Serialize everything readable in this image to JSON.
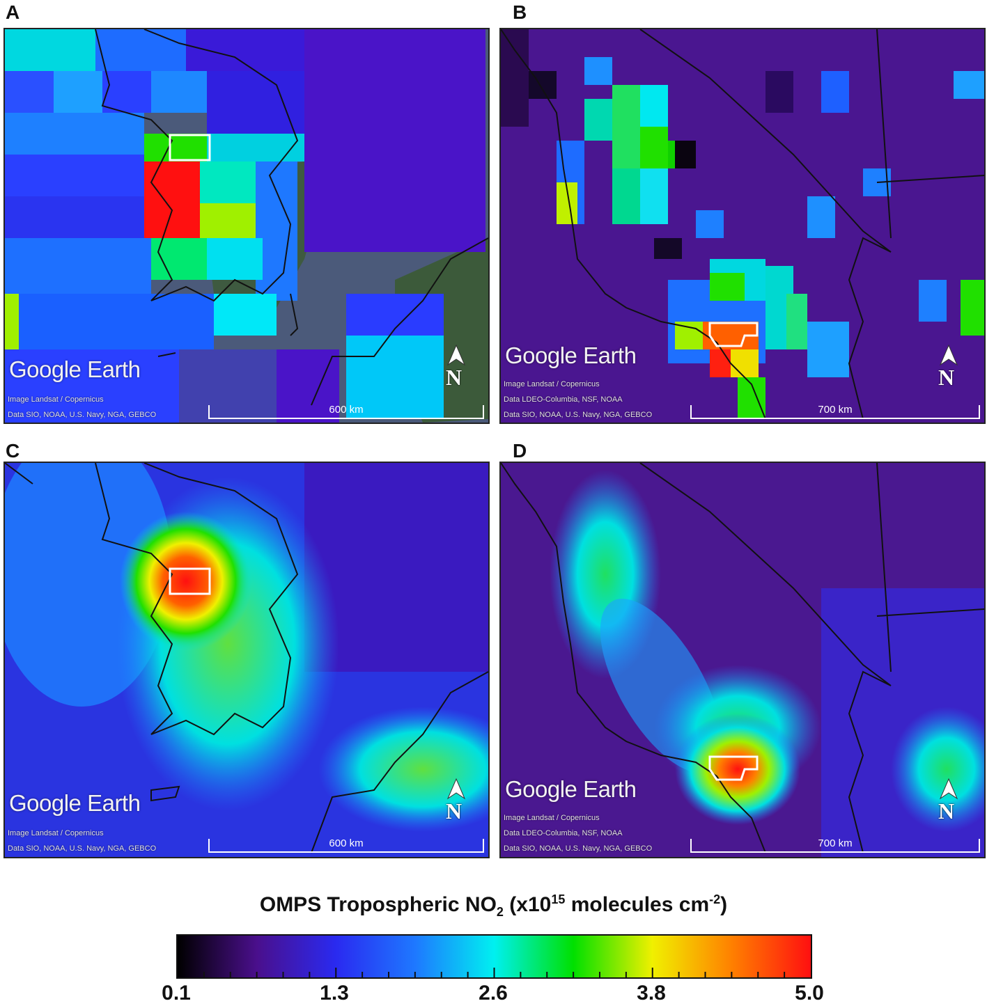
{
  "panels": [
    {
      "label": "A",
      "google_earth": "Google Earth",
      "credits": [
        "Image Landsat / Copernicus",
        "Data SIO, NOAA, U.S. Navy, NGA, GEBCO"
      ],
      "scale": "600 km",
      "north": "N"
    },
    {
      "label": "B",
      "google_earth": "Google Earth",
      "credits": [
        "Image Landsat / Copernicus",
        "Data LDEO-Columbia, NSF, NOAA",
        "Data SIO, NOAA, U.S. Navy, NGA, GEBCO"
      ],
      "scale": "700 km",
      "north": "N"
    },
    {
      "label": "C",
      "google_earth": "Google Earth",
      "credits": [
        "Image Landsat / Copernicus",
        "Data SIO, NOAA, U.S. Navy, NGA, GEBCO"
      ],
      "scale": "600 km",
      "north": "N"
    },
    {
      "label": "D",
      "google_earth": "Google Earth",
      "credits": [
        "Image Landsat / Copernicus",
        "Data LDEO-Columbia, NSF, NOAA",
        "Data SIO, NOAA, U.S. Navy, NGA, GEBCO"
      ],
      "scale": "700 km",
      "north": "N"
    }
  ],
  "colorbar": {
    "title_main": "OMPS Tropospheric NO",
    "title_sub": "2",
    "title_mid": " (x10",
    "title_sup": "15",
    "title_units": " molecules cm",
    "title_sup2": "-2",
    "title_end": ")",
    "ticks": [
      "0.1",
      "1.3",
      "2.6",
      "3.8",
      "5.0"
    ],
    "colors": [
      "#000000",
      "#4a0f8c",
      "#2a2af0",
      "#1e78ff",
      "#00f0f0",
      "#00e000",
      "#f0f000",
      "#ff8000",
      "#ff1010"
    ]
  }
}
